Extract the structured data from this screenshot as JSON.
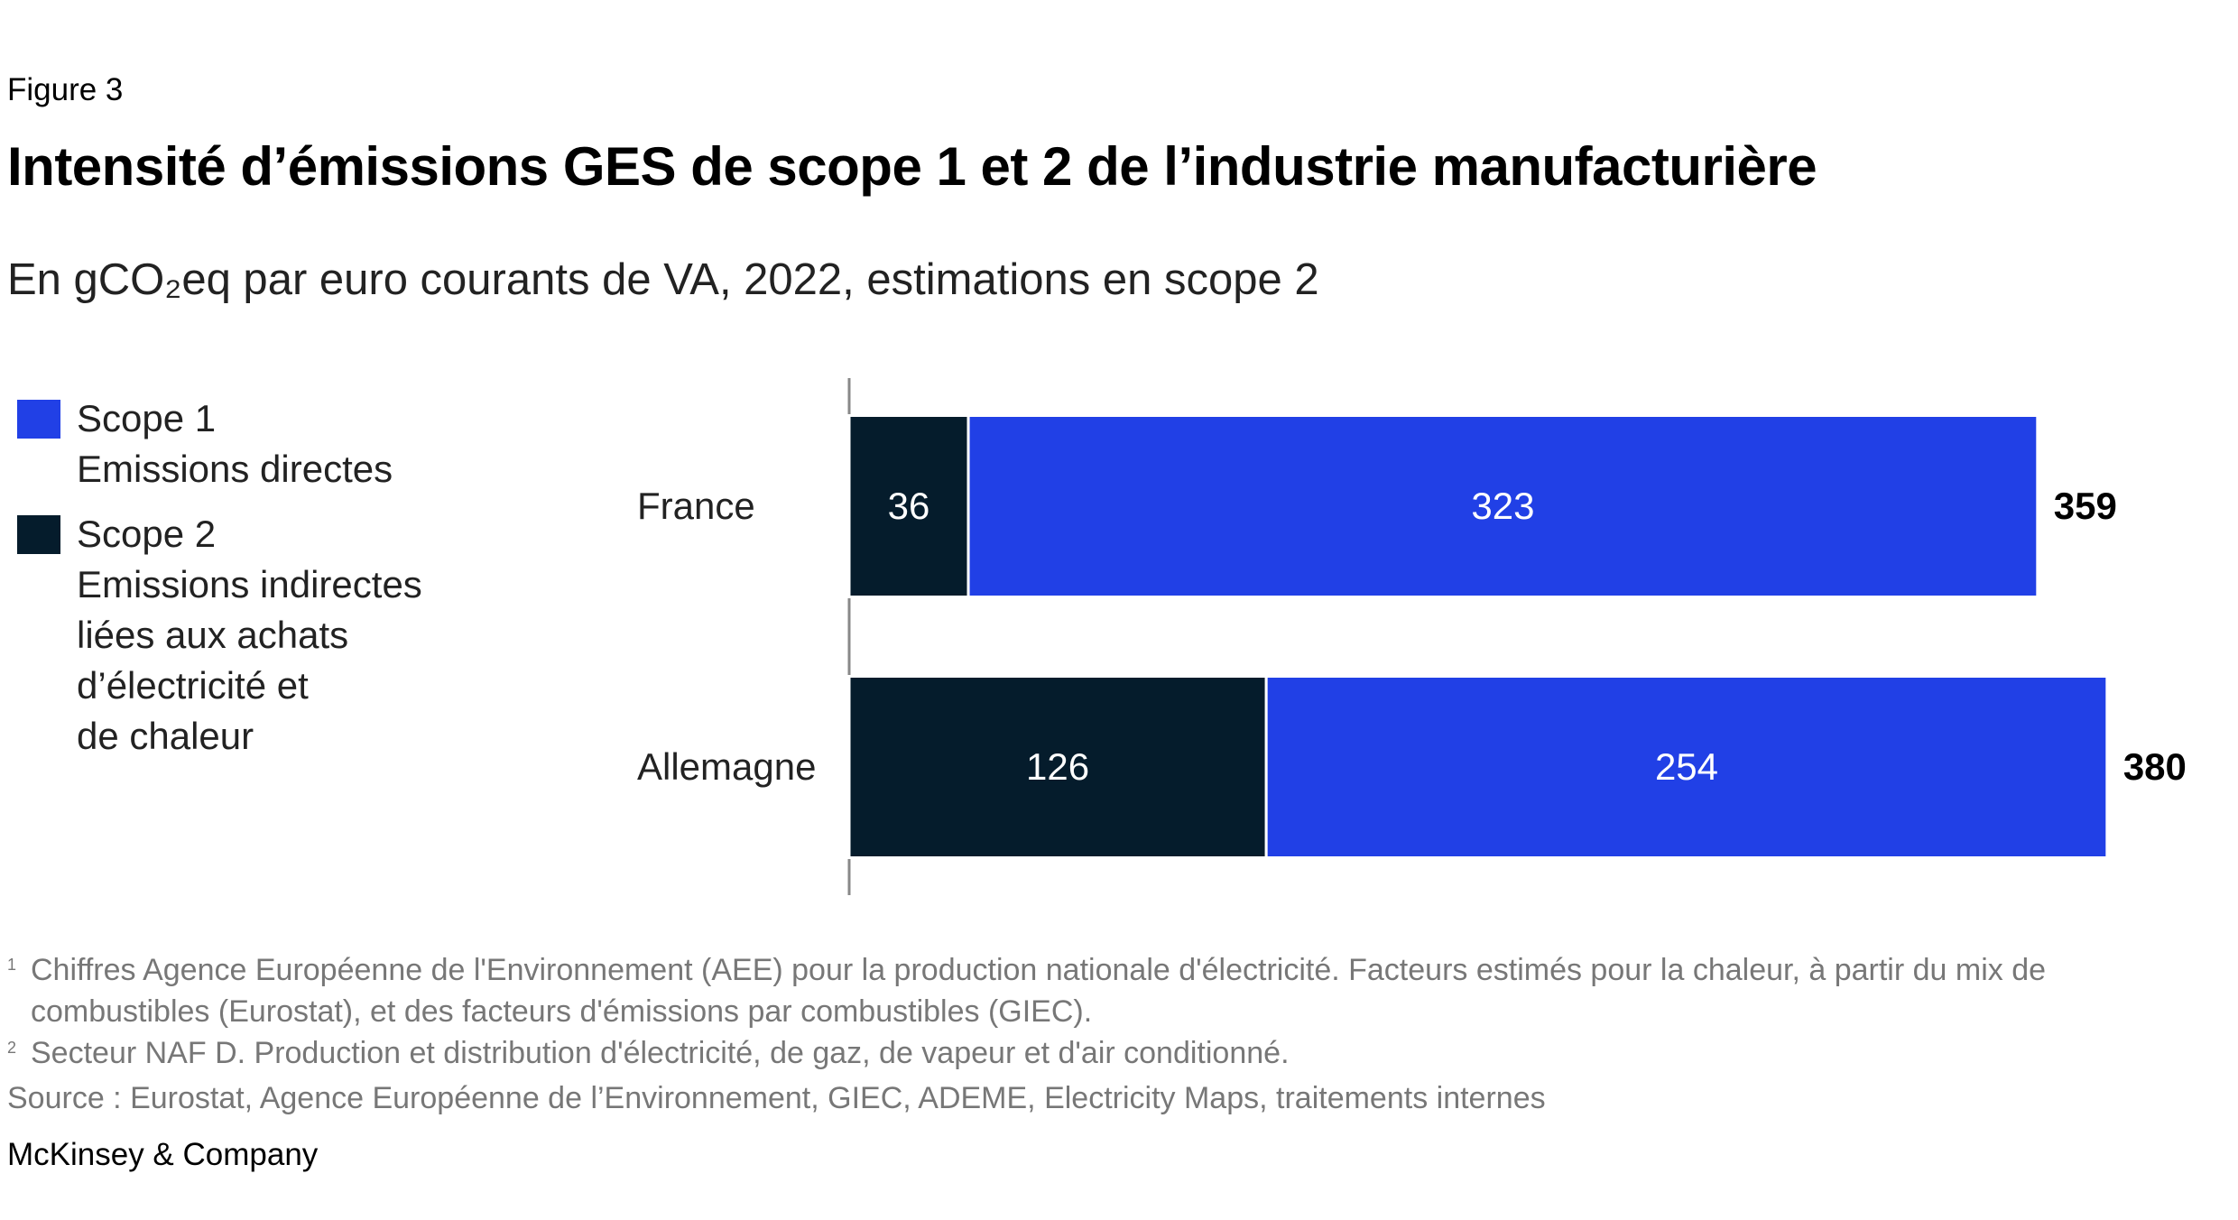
{
  "chart_data": {
    "type": "stacked-bar-horizontal",
    "figure_label": "Figure 3",
    "title": "Intensité d’émissions GES de scope 1 et 2 de l’industrie manufacturière",
    "subtitle": "En gCO₂eq par euro courants de VA, 2022, estimations en scope 2",
    "categories": [
      "France",
      "Allemagne"
    ],
    "series": [
      {
        "name": "Scope 1",
        "description": "Emissions directes",
        "color": "#2140e6",
        "values": [
          323,
          254
        ]
      },
      {
        "name": "Scope 2",
        "description": [
          "Emissions indirectes",
          "liées aux achats",
          "d’électricité et",
          "de chaleur"
        ],
        "color": "#051c2c",
        "values": [
          36,
          126
        ]
      }
    ],
    "totals": [
      359,
      380
    ],
    "footnotes": [
      {
        "mark": "1",
        "text": "Chiffres Agence Européenne de l'Environnement (AEE) pour la production nationale d'électricité. Facteurs estimés pour la chaleur, à partir du mix de combustibles (Eurostat), et des facteurs d'émissions par combustibles (GIEC)."
      },
      {
        "mark": "2",
        "text": "Secteur NAF D. Production et distribution d'électricité, de gaz, de vapeur et d'air conditionné."
      }
    ],
    "source": "Source : Eurostat, Agence Européenne de l’Environnement, GIEC, ADEME, Electricity Maps, traitements internes",
    "brand": "McKinsey & Company"
  }
}
